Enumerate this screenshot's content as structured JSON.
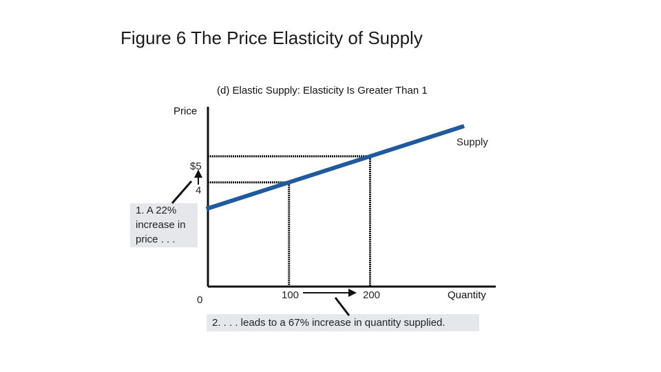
{
  "title": "Figure 6 The Price Elasticity of Supply",
  "chart_data": {
    "type": "line",
    "subtitle": "(d) Elastic Supply: Elasticity Is Greater Than 1",
    "ylabel": "Price",
    "xlabel": "Quantity",
    "origin_label": "0",
    "y_ticks": [
      {
        "value": 5,
        "label": "$5"
      },
      {
        "value": 4,
        "label": "4"
      }
    ],
    "x_ticks": [
      {
        "value": 100,
        "label": "100"
      },
      {
        "value": 200,
        "label": "200"
      }
    ],
    "series": [
      {
        "name": "Supply",
        "color": "#1f5a9e",
        "points": [
          {
            "x": 100,
            "y": 4
          },
          {
            "x": 200,
            "y": 5
          }
        ],
        "extent_x": [
          -2,
          316
        ]
      }
    ],
    "xlim": [
      0,
      355
    ],
    "ylim": [
      0,
      6.9
    ],
    "annotations": {
      "price_note": "1. A 22% increase in price . . .",
      "quantity_note": "2. . . . leads to a 67% increase in quantity supplied."
    },
    "grid": false
  }
}
